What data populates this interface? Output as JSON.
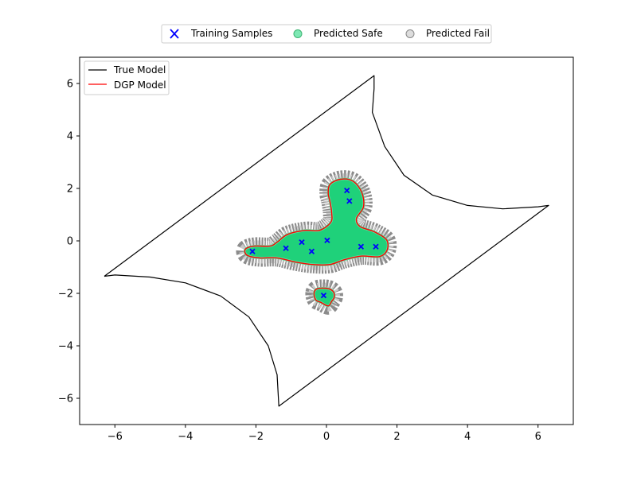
{
  "chart_data": {
    "type": "scatter",
    "title": "",
    "xlabel": "",
    "ylabel": "",
    "xlim": [
      -7,
      7
    ],
    "ylim": [
      -7,
      7
    ],
    "x_ticks": [
      -6,
      -4,
      -2,
      0,
      2,
      4,
      6
    ],
    "y_ticks": [
      -6,
      -4,
      -2,
      0,
      2,
      4,
      6
    ],
    "x_tick_labels": [
      "−6",
      "−4",
      "−2",
      "0",
      "2",
      "4",
      "6"
    ],
    "y_tick_labels": [
      "−6",
      "−4",
      "−2",
      "0",
      "2",
      "4",
      "6"
    ],
    "grid": false,
    "top_legend": {
      "placement": "above-plot-center",
      "entries": [
        {
          "label": "Training Samples",
          "marker": "x",
          "color": "#0000ff"
        },
        {
          "label": "Predicted Safe",
          "marker": "circle",
          "color": "#3ee89a"
        },
        {
          "label": "Predicted Fail",
          "marker": "circle",
          "color": "#c8c8c8"
        }
      ]
    },
    "inner_legend": {
      "placement": "upper-left",
      "entries": [
        {
          "label": "True Model",
          "color": "#000000"
        },
        {
          "label": "DGP Model",
          "color": "#ff0000"
        }
      ]
    },
    "training_samples": [
      [
        -2.1,
        -0.4
      ],
      [
        -1.15,
        -0.28
      ],
      [
        -0.7,
        -0.05
      ],
      [
        -0.42,
        -0.4
      ],
      [
        0.02,
        0.02
      ],
      [
        0.58,
        1.92
      ],
      [
        0.65,
        1.52
      ],
      [
        0.98,
        -0.22
      ],
      [
        1.4,
        -0.22
      ],
      [
        -0.08,
        -2.08
      ]
    ],
    "true_model_boundary": [
      [
        -6.3,
        -1.35
      ],
      [
        -6.0,
        -1.3
      ],
      [
        -5.0,
        -1.38
      ],
      [
        -4.0,
        -1.6
      ],
      [
        -3.0,
        -2.1
      ],
      [
        -2.2,
        -2.9
      ],
      [
        -1.65,
        -4.0
      ],
      [
        -1.4,
        -5.1
      ],
      [
        -1.35,
        -6.3
      ],
      [
        6.3,
        1.35
      ],
      [
        6.0,
        1.3
      ],
      [
        5.0,
        1.22
      ],
      [
        4.0,
        1.35
      ],
      [
        3.0,
        1.75
      ],
      [
        2.2,
        2.5
      ],
      [
        1.65,
        3.6
      ],
      [
        1.3,
        4.9
      ],
      [
        1.35,
        5.8
      ],
      [
        1.35,
        6.3
      ],
      [
        -6.3,
        -1.35
      ]
    ],
    "dgp_model_boundary": [
      [
        [
          -2.3,
          -0.32
        ],
        [
          -2.05,
          -0.2
        ],
        [
          -1.6,
          -0.2
        ],
        [
          -1.4,
          -0.05
        ],
        [
          -1.1,
          0.25
        ],
        [
          -0.6,
          0.4
        ],
        [
          -0.2,
          0.4
        ],
        [
          0.12,
          0.7
        ],
        [
          0.15,
          1.05
        ],
        [
          0.1,
          1.5
        ],
        [
          0.05,
          1.8
        ],
        [
          0.1,
          2.15
        ],
        [
          0.4,
          2.35
        ],
        [
          0.75,
          2.28
        ],
        [
          1.0,
          1.85
        ],
        [
          1.05,
          1.3
        ],
        [
          0.85,
          0.85
        ],
        [
          0.95,
          0.55
        ],
        [
          1.35,
          0.35
        ],
        [
          1.7,
          0.05
        ],
        [
          1.72,
          -0.35
        ],
        [
          1.5,
          -0.6
        ],
        [
          1.0,
          -0.58
        ],
        [
          0.5,
          -0.72
        ],
        [
          0.1,
          -0.9
        ],
        [
          -0.4,
          -0.9
        ],
        [
          -0.9,
          -0.8
        ],
        [
          -1.4,
          -0.65
        ],
        [
          -1.9,
          -0.65
        ],
        [
          -2.25,
          -0.55
        ],
        [
          -2.3,
          -0.32
        ]
      ],
      [
        [
          -0.35,
          -1.98
        ],
        [
          -0.25,
          -1.82
        ],
        [
          0.05,
          -1.82
        ],
        [
          0.2,
          -1.95
        ],
        [
          0.22,
          -2.15
        ],
        [
          0.15,
          -2.3
        ],
        [
          0.05,
          -2.48
        ],
        [
          -0.15,
          -2.35
        ],
        [
          -0.3,
          -2.25
        ],
        [
          -0.35,
          -1.98
        ]
      ]
    ],
    "predicted_safe_region": "inside DGP Model boundary",
    "predicted_fail_region": "band just outside DGP Model boundary"
  }
}
